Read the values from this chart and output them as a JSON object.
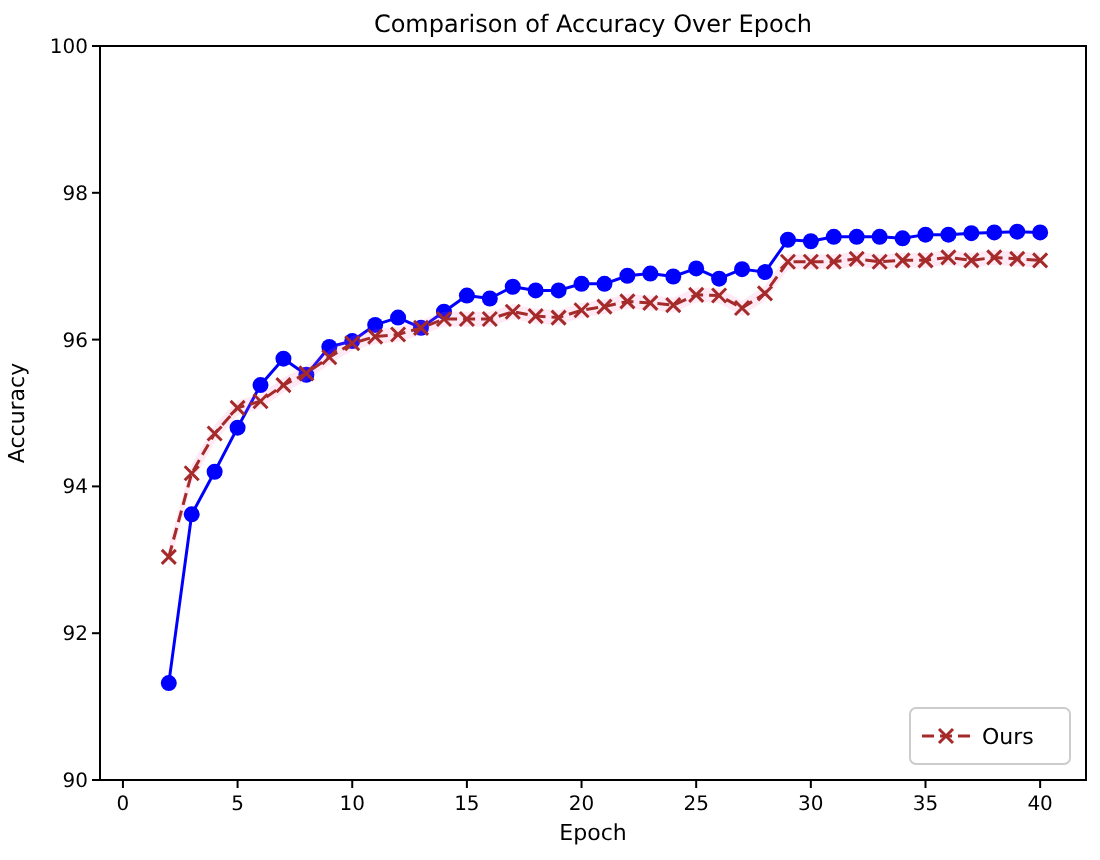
{
  "chart_data": {
    "type": "line",
    "title": "Comparison of Accuracy Over Epoch",
    "xlabel": "Epoch",
    "ylabel": "Accuracy",
    "x": [
      2,
      3,
      4,
      5,
      6,
      7,
      8,
      9,
      10,
      11,
      12,
      13,
      14,
      15,
      16,
      17,
      18,
      19,
      20,
      21,
      22,
      23,
      24,
      25,
      26,
      27,
      28,
      29,
      30,
      31,
      32,
      33,
      34,
      35,
      36,
      37,
      38,
      39,
      40
    ],
    "xlim": [
      -1,
      42
    ],
    "xticks": [
      0,
      5,
      10,
      15,
      20,
      25,
      30,
      35,
      40
    ],
    "ylim": [
      90,
      100
    ],
    "yticks": [
      90,
      92,
      94,
      96,
      98,
      100
    ],
    "grid": false,
    "legend": "bottom right",
    "series": [
      {
        "color": "#0000ff",
        "marker": "circle",
        "line_style": "solid",
        "values": [
          91.32,
          93.62,
          94.2,
          94.8,
          95.38,
          95.74,
          95.52,
          95.9,
          95.98,
          96.2,
          96.3,
          96.16,
          96.38,
          96.6,
          96.56,
          96.72,
          96.67,
          96.67,
          96.76,
          96.76,
          96.87,
          96.9,
          96.86,
          96.97,
          96.83,
          96.96,
          96.92,
          97.36,
          97.34,
          97.4,
          97.4,
          97.4,
          97.38,
          97.43,
          97.43,
          97.45,
          97.46,
          97.47,
          97.46
        ]
      },
      {
        "name": "Ours",
        "color": "#a52a2a",
        "marker": "cross",
        "line_style": "dashed",
        "values": [
          93.04,
          94.18,
          94.72,
          95.07,
          95.16,
          95.38,
          95.54,
          95.76,
          95.95,
          96.04,
          96.07,
          96.16,
          96.28,
          96.28,
          96.28,
          96.38,
          96.32,
          96.3,
          96.4,
          96.45,
          96.52,
          96.5,
          96.47,
          96.61,
          96.6,
          96.43,
          96.63,
          97.06,
          97.06,
          97.06,
          97.1,
          97.06,
          97.08,
          97.08,
          97.12,
          97.08,
          97.12,
          97.1,
          97.08
        ],
        "lower": [
          92.9,
          94.05,
          94.6,
          94.97,
          95.06,
          95.28,
          95.44,
          95.66,
          95.85,
          95.94,
          95.97,
          96.06,
          96.18,
          96.18,
          96.18,
          96.28,
          96.22,
          96.2,
          96.3,
          96.35,
          96.42,
          96.4,
          96.37,
          96.51,
          96.5,
          96.33,
          96.53,
          96.96,
          96.96,
          96.96,
          97.0,
          96.96,
          96.98,
          96.98,
          97.02,
          96.98,
          97.02,
          97.0,
          96.98
        ],
        "upper": [
          93.2,
          94.3,
          94.84,
          95.17,
          95.26,
          95.48,
          95.64,
          95.86,
          96.05,
          96.14,
          96.17,
          96.26,
          96.38,
          96.38,
          96.38,
          96.48,
          96.42,
          96.4,
          96.5,
          96.55,
          96.62,
          96.6,
          96.57,
          96.71,
          96.7,
          96.53,
          96.73,
          97.16,
          97.16,
          97.16,
          97.2,
          97.16,
          97.18,
          97.18,
          97.22,
          97.18,
          97.22,
          97.2,
          97.18
        ]
      }
    ]
  }
}
